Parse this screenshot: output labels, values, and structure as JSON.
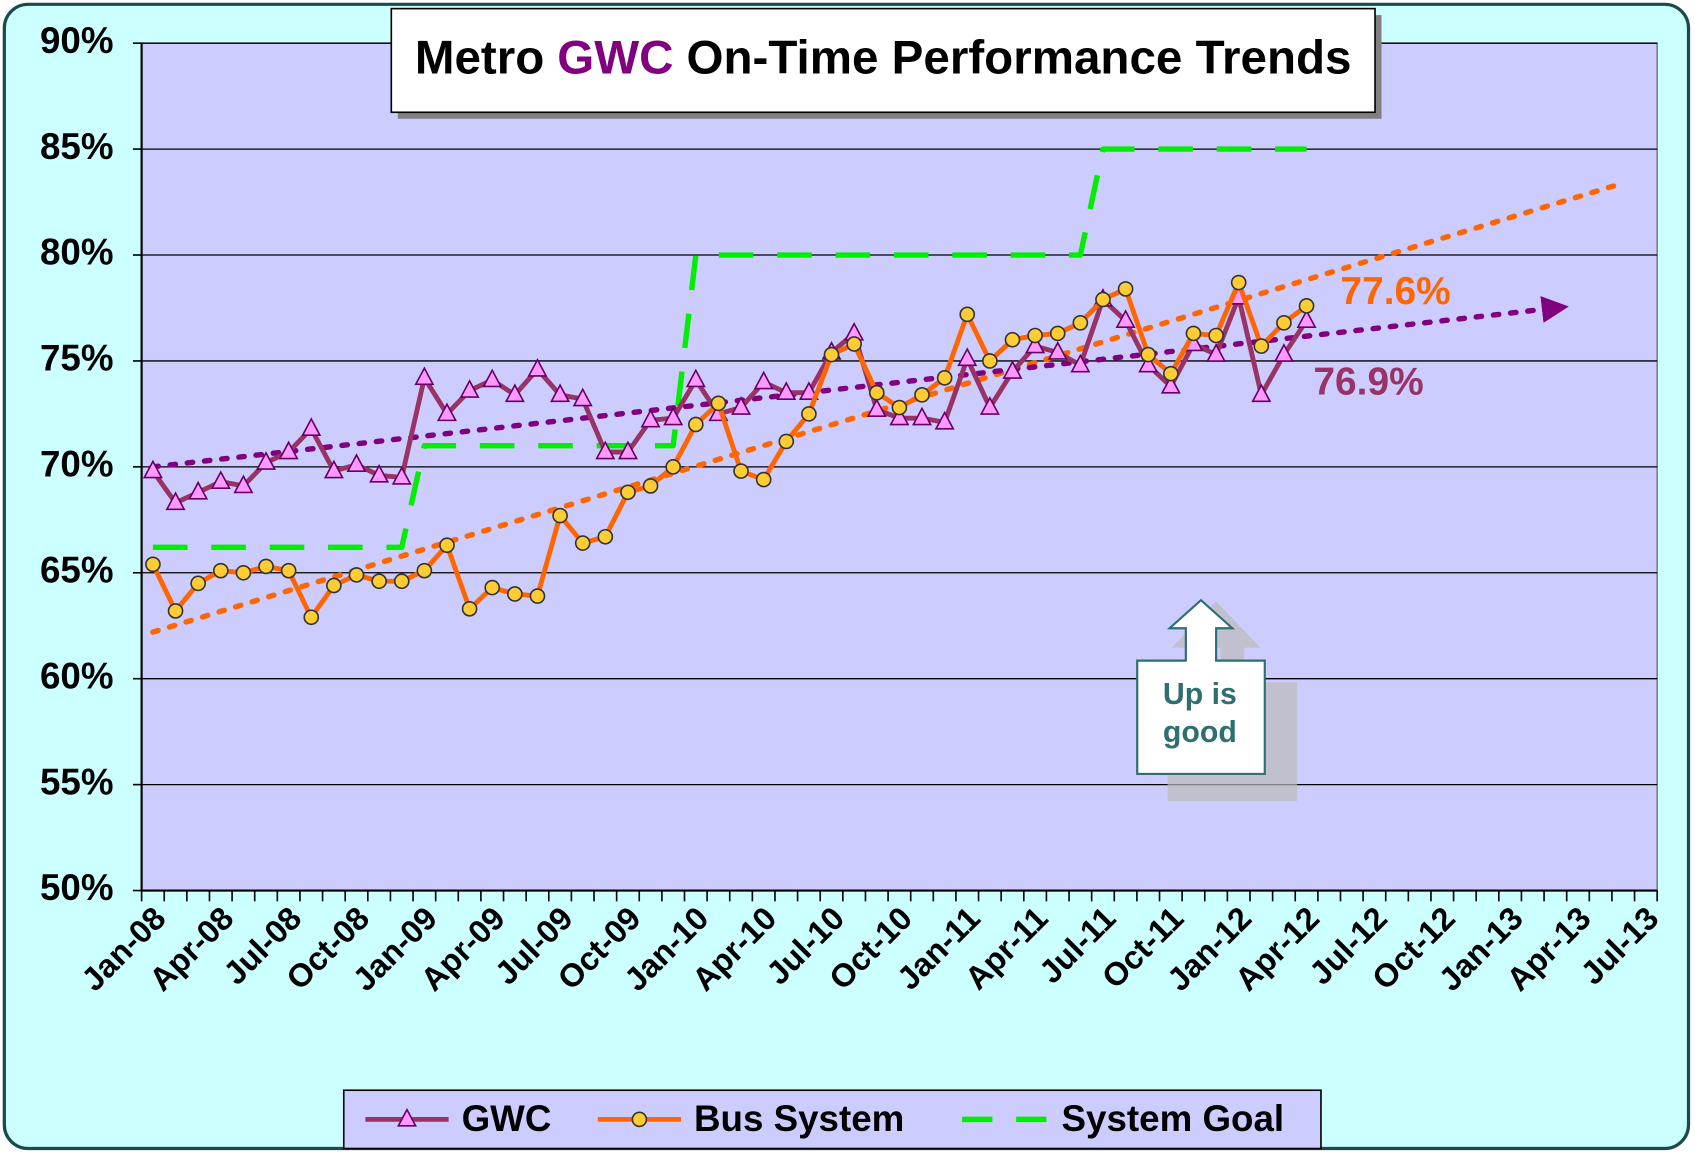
{
  "chart_data": {
    "type": "line",
    "title": [
      "Metro",
      "GWC",
      "On-Time Performance Trends"
    ],
    "title_colors": [
      "#000000",
      "#800080",
      "#000000"
    ],
    "categories": [
      "Jan-08",
      null,
      null,
      "Apr-08",
      null,
      null,
      "Jul-08",
      null,
      null,
      "Oct-08",
      null,
      null,
      "Jan-09",
      null,
      null,
      "Apr-09",
      null,
      null,
      "Jul-09",
      null,
      null,
      "Oct-09",
      null,
      null,
      "Jan-10",
      null,
      null,
      "Apr-10",
      null,
      null,
      "Jul-10",
      null,
      null,
      "Oct-10",
      null,
      null,
      "Jan-11",
      null,
      null,
      "Apr-11",
      null,
      null,
      "Jul-11",
      null,
      null,
      "Oct-11",
      null,
      null,
      "Jan-12",
      null,
      null,
      "Apr-12",
      null,
      null,
      "Jul-12",
      null,
      null,
      "Oct-12",
      null,
      null,
      "Jan-13",
      null,
      null,
      "Apr-13",
      null,
      null,
      "Jul-13"
    ],
    "series": [
      {
        "name": "GWC",
        "color": "#993366",
        "marker": "triangle",
        "marker_fill": "#ff99ff",
        "values": [
          69.8,
          68.3,
          68.8,
          69.3,
          69.1,
          70.2,
          70.7,
          71.8,
          69.8,
          70.1,
          69.6,
          69.5,
          74.2,
          72.5,
          73.6,
          74.1,
          73.4,
          74.6,
          73.4,
          73.2,
          70.7,
          70.7,
          72.2,
          72.3,
          74.1,
          72.5,
          72.8,
          74.0,
          73.5,
          73.5,
          75.4,
          76.3,
          72.7,
          72.3,
          72.3,
          72.1,
          75.1,
          72.8,
          74.5,
          75.7,
          75.4,
          74.8,
          77.9,
          76.9,
          74.8,
          73.8,
          75.8,
          75.3,
          78.0,
          73.4,
          75.3,
          76.9,
          null,
          null,
          null,
          null,
          null,
          null,
          null,
          null,
          null,
          null,
          null,
          null,
          null,
          null,
          null
        ]
      },
      {
        "name": "Bus System",
        "color": "#ff6600",
        "marker": "circle",
        "marker_fill": "#ffcc33",
        "values": [
          65.4,
          63.2,
          64.5,
          65.1,
          65.0,
          65.3,
          65.1,
          62.9,
          64.4,
          64.9,
          64.6,
          64.6,
          65.1,
          66.3,
          63.3,
          64.3,
          64.0,
          63.9,
          67.7,
          66.4,
          66.7,
          68.8,
          69.1,
          70.0,
          72.0,
          73.0,
          69.8,
          69.4,
          71.2,
          72.5,
          75.3,
          75.8,
          73.5,
          72.8,
          73.4,
          74.2,
          77.2,
          75.0,
          76.0,
          76.2,
          76.3,
          76.8,
          77.9,
          78.4,
          75.3,
          74.4,
          76.3,
          76.2,
          78.7,
          75.7,
          76.8,
          77.6,
          null,
          null,
          null,
          null,
          null,
          null,
          null,
          null,
          null,
          null,
          null,
          null,
          null,
          null,
          null
        ]
      },
      {
        "name": "System Goal",
        "color": "#00ee00",
        "marker": "none",
        "dashed": true,
        "values": [
          66.2,
          66.2,
          66.2,
          66.2,
          66.2,
          66.2,
          66.2,
          66.2,
          66.2,
          66.2,
          66.2,
          66.2,
          71,
          71,
          71,
          71,
          71,
          71,
          71,
          71,
          71,
          71,
          71,
          71,
          80,
          80,
          80,
          80,
          80,
          80,
          80,
          80,
          80,
          80,
          80,
          80,
          80,
          80,
          80,
          80,
          80,
          80,
          85,
          85,
          85,
          85,
          85,
          85,
          85,
          85,
          85,
          85,
          null,
          null,
          null,
          null,
          null,
          null,
          null,
          null,
          null,
          null,
          null,
          null,
          null,
          null,
          null
        ]
      }
    ],
    "trendlines": [
      {
        "color": "#ff6600",
        "x": [
          0,
          65
        ],
        "values": [
          62.2,
          83.4
        ]
      },
      {
        "color": "#800080",
        "x": [
          0,
          62
        ],
        "values": [
          70.0,
          77.5
        ],
        "arrow": true
      }
    ],
    "annotations": [
      {
        "text": "77.6%",
        "color": "#ff6600"
      },
      {
        "text": "76.9%",
        "color": "#993366"
      }
    ],
    "callout": [
      "Up is",
      "good"
    ],
    "ylim": [
      50,
      90
    ],
    "yticks": [
      {
        "value": 50,
        "label": "50%"
      },
      {
        "value": 55,
        "label": "55%"
      },
      {
        "value": 60,
        "label": "60%"
      },
      {
        "value": 65,
        "label": "65%"
      },
      {
        "value": 70,
        "label": "70%"
      },
      {
        "value": 75,
        "label": "75%"
      },
      {
        "value": 80,
        "label": "80%"
      },
      {
        "value": 85,
        "label": "85%"
      },
      {
        "value": 90,
        "label": "90%"
      }
    ],
    "grid": true,
    "legend": "bottom",
    "plot_color": "#ccccff",
    "background_color": "#ccffff"
  }
}
